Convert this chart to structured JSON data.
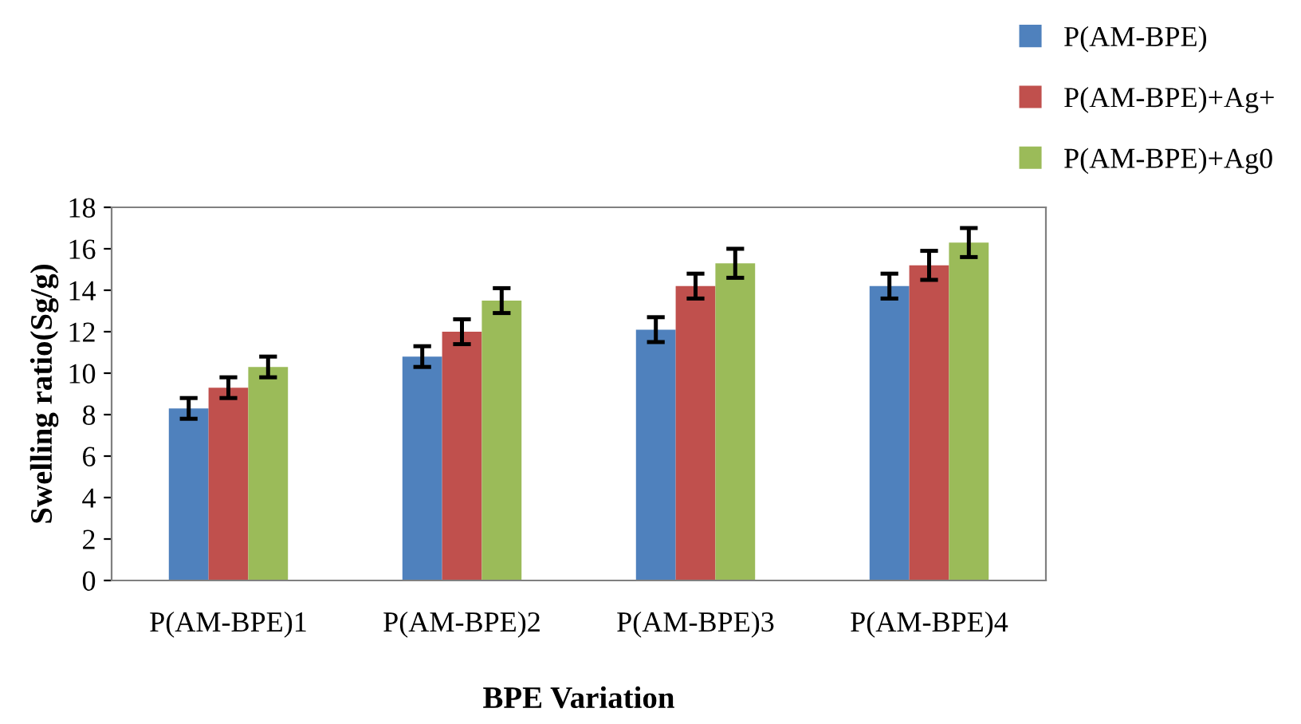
{
  "chart_data": {
    "type": "bar",
    "xlabel": "BPE Variation",
    "ylabel": "Swelling ratio(Sg/g)",
    "categories": [
      "P(AM-BPE)1",
      "P(AM-BPE)2",
      "P(AM-BPE)3",
      "P(AM-BPE)4"
    ],
    "series": [
      {
        "name": "P(AM-BPE)",
        "color": "#4f81bd",
        "values": [
          8.3,
          10.8,
          12.1,
          14.2
        ],
        "errors": [
          0.5,
          0.5,
          0.6,
          0.6
        ]
      },
      {
        "name": "P(AM-BPE)+Ag+",
        "color": "#c0504d",
        "values": [
          9.3,
          12.0,
          14.2,
          15.2
        ],
        "errors": [
          0.5,
          0.6,
          0.6,
          0.7
        ]
      },
      {
        "name": "P(AM-BPE)+Ag0",
        "color": "#9bbb59",
        "values": [
          10.3,
          13.5,
          15.3,
          16.3
        ],
        "errors": [
          0.5,
          0.6,
          0.7,
          0.7
        ]
      }
    ],
    "ylim": [
      0,
      18
    ],
    "yticks": [
      0,
      2,
      4,
      6,
      8,
      10,
      12,
      14,
      16,
      18
    ],
    "grid": false,
    "legend": "top right"
  }
}
